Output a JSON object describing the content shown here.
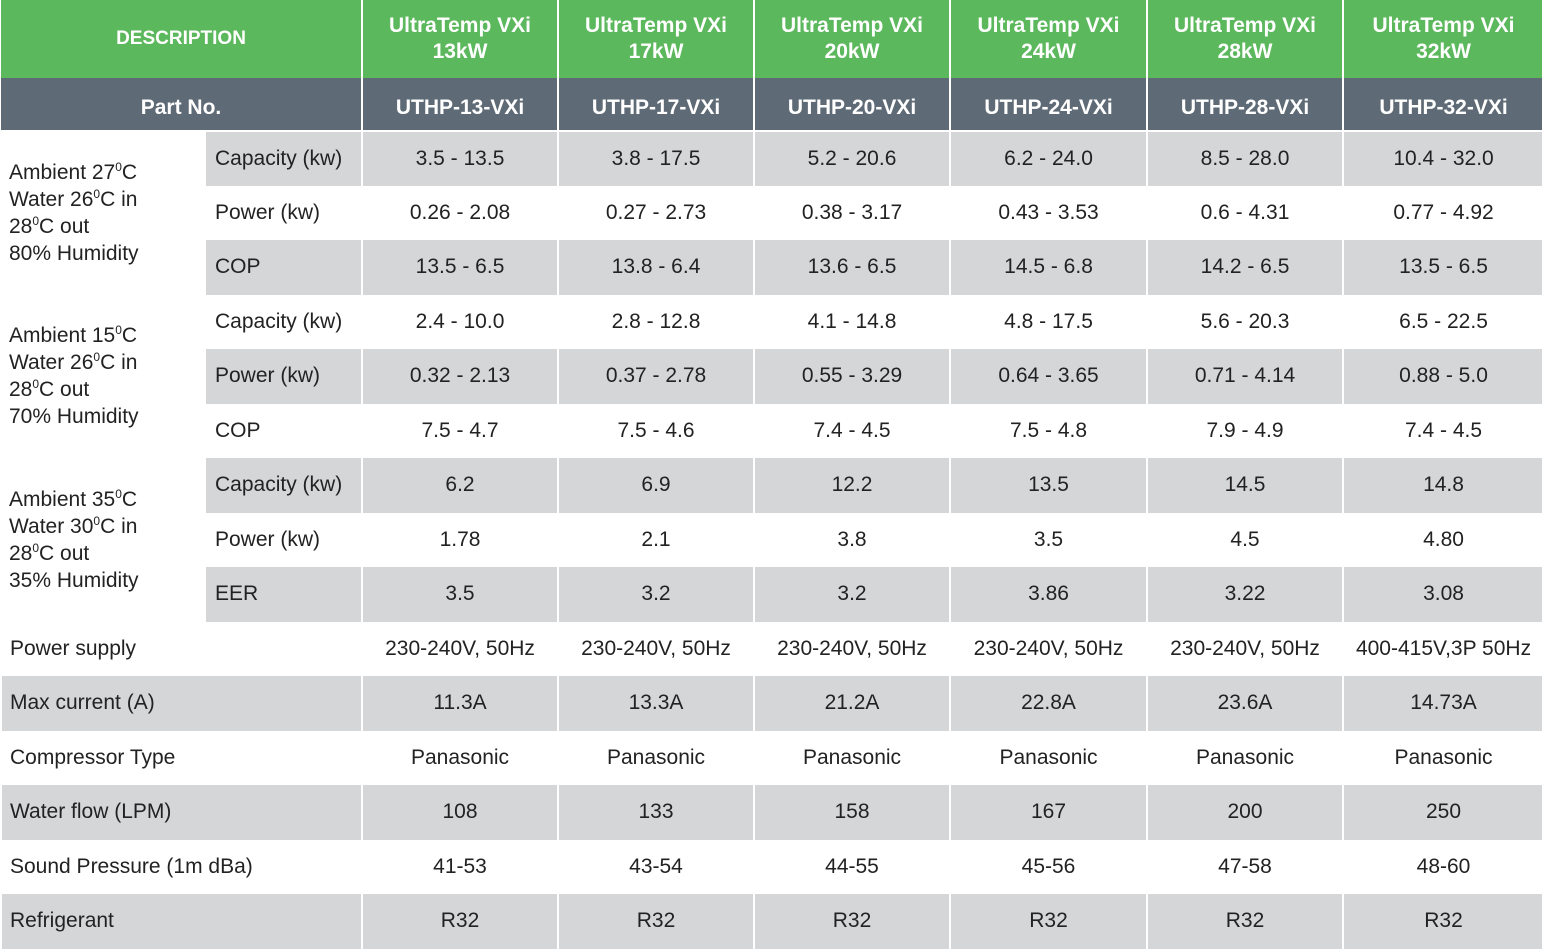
{
  "header": {
    "description": "DESCRIPTION",
    "part_no_label": "Part No.",
    "models": [
      {
        "line1": "UltraTemp VXi",
        "line2": "13kW",
        "part": "UTHP-13-VXi"
      },
      {
        "line1": "UltraTemp VXi",
        "line2": "17kW",
        "part": "UTHP-17-VXi"
      },
      {
        "line1": "UltraTemp VXi",
        "line2": "20kW",
        "part": "UTHP-20-VXi"
      },
      {
        "line1": "UltraTemp VXi",
        "line2": "24kW",
        "part": "UTHP-24-VXi"
      },
      {
        "line1": "UltraTemp VXi",
        "line2": "28kW",
        "part": "UTHP-28-VXi"
      },
      {
        "line1": "UltraTemp VXi",
        "line2": "32kW",
        "part": "UTHP-32-VXi"
      }
    ]
  },
  "groups": [
    {
      "condition": {
        "amb_pre": "Ambient 27",
        "amb_sup": "0",
        "amb_post": "C",
        "water_pre": "Water 26",
        "water_sup": "0",
        "water_post": "C in",
        "out_pre": "28",
        "out_sup": "0",
        "out_post": "C out",
        "humidity": "80% Humidity"
      },
      "rows": [
        {
          "param": "Capacity (kw)",
          "values": [
            "3.5 - 13.5",
            "3.8 - 17.5",
            "5.2 - 20.6",
            "6.2 - 24.0",
            "8.5 - 28.0",
            "10.4 - 32.0"
          ]
        },
        {
          "param": "Power (kw)",
          "values": [
            "0.26 - 2.08",
            "0.27 - 2.73",
            "0.38 - 3.17",
            "0.43 - 3.53",
            "0.6 - 4.31",
            "0.77 - 4.92"
          ]
        },
        {
          "param": "COP",
          "values": [
            "13.5 - 6.5",
            "13.8 - 6.4",
            "13.6 - 6.5",
            "14.5 - 6.8",
            "14.2 - 6.5",
            "13.5 - 6.5"
          ]
        }
      ]
    },
    {
      "condition": {
        "amb_pre": "Ambient 15",
        "amb_sup": "0",
        "amb_post": "C",
        "water_pre": "Water 26",
        "water_sup": "0",
        "water_post": "C in",
        "out_pre": "28",
        "out_sup": "0",
        "out_post": "C out",
        "humidity": "70% Humidity"
      },
      "rows": [
        {
          "param": "Capacity (kw)",
          "values": [
            "2.4 - 10.0",
            "2.8 - 12.8",
            "4.1 - 14.8",
            "4.8 - 17.5",
            "5.6 - 20.3",
            "6.5 - 22.5"
          ]
        },
        {
          "param": "Power (kw)",
          "values": [
            "0.32 - 2.13",
            "0.37 - 2.78",
            "0.55 - 3.29",
            "0.64 - 3.65",
            "0.71 - 4.14",
            "0.88 - 5.0"
          ]
        },
        {
          "param": "COP",
          "values": [
            "7.5 - 4.7",
            "7.5 - 4.6",
            "7.4 - 4.5",
            "7.5 - 4.8",
            "7.9 - 4.9",
            "7.4 - 4.5"
          ]
        }
      ]
    },
    {
      "condition": {
        "amb_pre": "Ambient 35",
        "amb_sup": "0",
        "amb_post": "C",
        "water_pre": "Water 30",
        "water_sup": "0",
        "water_post": "C in",
        "out_pre": "28",
        "out_sup": "0",
        "out_post": "C out",
        "humidity": "35% Humidity"
      },
      "rows": [
        {
          "param": "Capacity (kw)",
          "values": [
            "6.2",
            "6.9",
            "12.2",
            "13.5",
            "14.5",
            "14.8"
          ]
        },
        {
          "param": "Power (kw)",
          "values": [
            "1.78",
            "2.1",
            "3.8",
            "3.5",
            "4.5",
            "4.80"
          ]
        },
        {
          "param": "EER",
          "values": [
            "3.5",
            "3.2",
            "3.2",
            "3.86",
            "3.22",
            "3.08"
          ]
        }
      ]
    }
  ],
  "spec_rows": [
    {
      "label": "Power supply",
      "values": [
        "230-240V, 50Hz",
        "230-240V, 50Hz",
        "230-240V, 50Hz",
        "230-240V, 50Hz",
        "230-240V, 50Hz",
        "400-415V,3P 50Hz"
      ]
    },
    {
      "label": "Max current (A)",
      "values": [
        "11.3A",
        "13.3A",
        "21.2A",
        "22.8A",
        "23.6A",
        "14.73A"
      ]
    },
    {
      "label": "Compressor Type",
      "values": [
        "Panasonic",
        "Panasonic",
        "Panasonic",
        "Panasonic",
        "Panasonic",
        "Panasonic"
      ]
    },
    {
      "label": "Water flow (LPM)",
      "values": [
        "108",
        "133",
        "158",
        "167",
        "200",
        "250"
      ]
    },
    {
      "label": "Sound Pressure (1m dBa)",
      "values": [
        "41-53",
        "43-54",
        "44-55",
        "45-56",
        "47-58",
        "48-60"
      ]
    },
    {
      "label": "Refrigerant",
      "values": [
        "R32",
        "R32",
        "R32",
        "R32",
        "R32",
        "R32"
      ]
    }
  ]
}
